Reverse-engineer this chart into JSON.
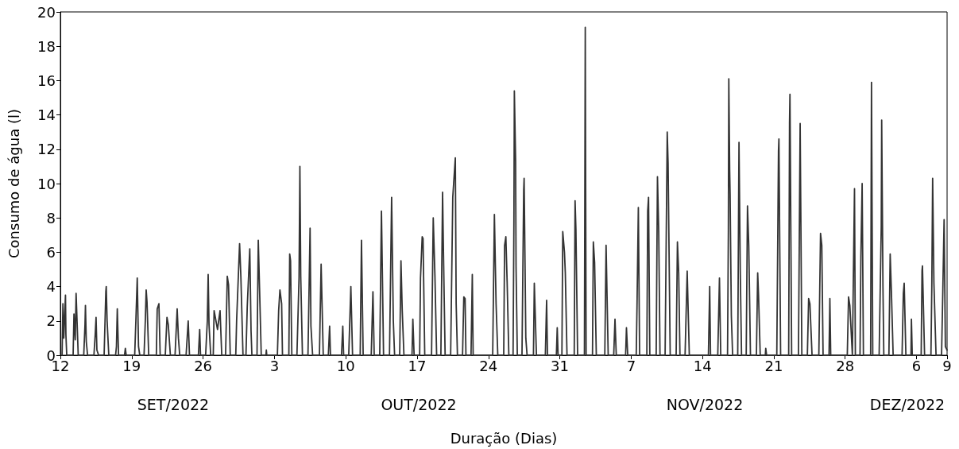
{
  "chart_data": {
    "type": "line",
    "xlabel": "Duração (Dias)",
    "ylabel": "Consumo de água (l)",
    "annotations": [
      "SET/2022",
      "OUT/2022",
      "NOV/2022",
      "DEZ/2022"
    ],
    "color": "#333333",
    "line_style": "solid",
    "xlim": [
      "2022-09-12",
      "2022-12-08"
    ],
    "xticks": [
      {
        "value": "2022-09-12",
        "label": "12"
      },
      {
        "value": "2022-09-19",
        "label": "19"
      },
      {
        "value": "2022-09-26",
        "label": "26"
      },
      {
        "value": "2022-10-03",
        "label": "3"
      },
      {
        "value": "2022-10-10",
        "label": "10"
      },
      {
        "value": "2022-10-17",
        "label": "17"
      },
      {
        "value": "2022-10-24",
        "label": "24"
      },
      {
        "value": "2022-10-31",
        "label": "31"
      },
      {
        "value": "2022-11-07",
        "label": "7"
      },
      {
        "value": "2022-11-14",
        "label": "14"
      },
      {
        "value": "2022-11-21",
        "label": "21"
      },
      {
        "value": "2022-11-28",
        "label": "28"
      },
      {
        "value": "2022-12-05",
        "label": "6"
      },
      {
        "value": "2022-12-08",
        "label": "9"
      }
    ],
    "ylim": [
      0,
      20
    ],
    "yticks": [
      0,
      2,
      4,
      6,
      8,
      10,
      12,
      14,
      16,
      18,
      20
    ],
    "x": [
      "2022-09-12T04:00",
      "2022-09-12T06:00",
      "2022-09-12T08:00",
      "2022-09-12T12:00",
      "2022-09-12T13:00",
      "2022-09-12T15:00",
      "2022-09-13T06:00",
      "2022-09-13T08:00",
      "2022-09-13T11:00",
      "2022-09-13T13:00",
      "2022-09-13T18:00",
      "2022-09-14T07:00",
      "2022-09-14T10:00",
      "2022-09-14T11:00",
      "2022-09-14T13:00",
      "2022-09-14T16:00",
      "2022-09-15T07:00",
      "2022-09-15T10:00",
      "2022-09-15T12:00",
      "2022-09-15T14:00",
      "2022-09-15T18:00",
      "2022-09-16T07:00",
      "2022-09-16T11:00",
      "2022-09-16T12:00",
      "2022-09-16T14:00",
      "2022-09-16T18:00",
      "2022-09-17T10:00",
      "2022-09-17T12:00",
      "2022-09-17T14:00",
      "2022-09-17T17:00",
      "2022-09-18T07:00",
      "2022-09-18T09:00",
      "2022-09-18T11:00",
      "2022-09-19T07:00",
      "2022-09-19T10:00",
      "2022-09-19T13:00",
      "2022-09-19T16:00",
      "2022-09-19T19:00",
      "2022-09-20T05:00",
      "2022-09-20T08:00",
      "2022-09-20T10:00",
      "2022-09-20T12:00",
      "2022-09-20T16:00",
      "2022-09-21T10:00",
      "2022-09-21T12:00",
      "2022-09-21T16:00",
      "2022-09-21T19:00",
      "2022-09-22T07:00",
      "2022-09-22T11:00",
      "2022-09-22T14:00",
      "2022-09-22T19:00",
      "2022-09-23T06:00",
      "2022-09-23T11:00",
      "2022-09-23T14:00",
      "2022-09-23T17:00",
      "2022-09-24T08:00",
      "2022-09-24T13:00",
      "2022-09-24T16:00",
      "2022-09-25T13:00",
      "2022-09-25T16:00",
      "2022-09-25T18:00",
      "2022-09-26T06:00",
      "2022-09-26T10:00",
      "2022-09-26T12:00",
      "2022-09-26T14:00",
      "2022-09-26T18:00",
      "2022-09-27T00:00",
      "2022-09-27T02:00",
      "2022-09-27T10:00",
      "2022-09-27T16:00",
      "2022-09-27T20:00",
      "2022-09-28T05:00",
      "2022-09-28T09:00",
      "2022-09-28T12:00",
      "2022-09-28T16:00",
      "2022-09-29T05:00",
      "2022-09-29T07:00",
      "2022-09-29T14:00",
      "2022-09-29T17:00",
      "2022-09-29T22:00",
      "2022-09-30T05:00",
      "2022-09-30T08:00",
      "2022-09-30T14:00",
      "2022-09-30T17:00",
      "2022-09-30T19:00",
      "2022-10-01T07:00",
      "2022-10-01T10:00",
      "2022-10-01T13:00",
      "2022-10-01T17:00",
      "2022-10-02T04:00",
      "2022-10-02T05:00",
      "2022-10-02T06:00",
      "2022-10-03T07:00",
      "2022-10-03T10:00",
      "2022-10-03T13:00",
      "2022-10-03T17:00",
      "2022-10-03T19:00",
      "2022-10-04T10:00",
      "2022-10-04T12:00",
      "2022-10-04T14:00",
      "2022-10-04T17:00",
      "2022-10-05T05:00",
      "2022-10-05T10:00",
      "2022-10-05T12:00",
      "2022-10-05T14:00",
      "2022-10-05T18:00",
      "2022-10-06T07:00",
      "2022-10-06T12:00",
      "2022-10-06T14:00",
      "2022-10-06T18:00",
      "2022-10-07T10:00",
      "2022-10-07T14:00",
      "2022-10-07T19:00",
      "2022-10-08T07:00",
      "2022-10-08T10:00",
      "2022-10-08T12:00",
      "2022-10-09T14:00",
      "2022-10-09T17:00",
      "2022-10-09T19:00",
      "2022-10-10T07:00",
      "2022-10-10T12:00",
      "2022-10-10T16:00",
      "2022-10-11T10:00",
      "2022-10-11T13:00",
      "2022-10-11T17:00",
      "2022-10-12T12:00",
      "2022-10-12T16:00",
      "2022-10-12T19:00",
      "2022-10-13T08:00",
      "2022-10-13T12:00",
      "2022-10-13T13:00",
      "2022-10-13T17:00",
      "2022-10-14T07:00",
      "2022-10-14T12:00",
      "2022-10-14T16:00",
      "2022-10-14T19:00",
      "2022-10-15T07:00",
      "2022-10-15T10:00",
      "2022-10-15T13:00",
      "2022-10-15T17:00",
      "2022-10-16T12:00",
      "2022-10-16T14:00",
      "2022-10-16T17:00",
      "2022-10-17T06:00",
      "2022-10-17T08:00",
      "2022-10-17T12:00",
      "2022-10-17T14:00",
      "2022-10-17T18:00",
      "2022-10-18T10:00",
      "2022-10-18T14:00",
      "2022-10-18T18:00",
      "2022-10-18T22:00",
      "2022-10-19T08:00",
      "2022-10-19T12:00",
      "2022-10-19T14:00",
      "2022-10-19T18:00",
      "2022-10-20T07:00",
      "2022-10-20T12:00",
      "2022-10-20T18:00",
      "2022-10-20T20:00",
      "2022-10-20T23:00",
      "2022-10-21T11:00",
      "2022-10-21T14:00",
      "2022-10-21T17:00",
      "2022-10-21T19:00",
      "2022-10-22T07:00",
      "2022-10-22T10:00",
      "2022-10-22T12:00",
      "2022-10-24T10:00",
      "2022-10-24T14:00",
      "2022-10-24T18:00",
      "2022-10-24T22:00",
      "2022-10-25T12:00",
      "2022-10-25T14:00",
      "2022-10-25T17:00",
      "2022-10-25T20:00",
      "2022-10-26T00:00",
      "2022-10-26T10:00",
      "2022-10-26T12:00",
      "2022-10-26T13:00",
      "2022-10-26T16:00",
      "2022-10-26T17:00",
      "2022-10-26T20:00",
      "2022-10-27T07:00",
      "2022-10-27T11:00",
      "2022-10-27T12:00",
      "2022-10-27T16:00",
      "2022-10-27T19:00",
      "2022-10-28T10:00",
      "2022-10-28T12:00",
      "2022-10-28T17:00",
      "2022-10-29T14:00",
      "2022-10-29T17:00",
      "2022-10-29T19:00",
      "2022-10-30T16:00",
      "2022-10-30T18:00",
      "2022-10-30T20:00",
      "2022-10-31T05:00",
      "2022-10-31T07:00",
      "2022-10-31T11:00",
      "2022-10-31T13:00",
      "2022-10-31T17:00",
      "2022-11-01T10:00",
      "2022-11-01T12:00",
      "2022-11-01T14:00",
      "2022-11-01T18:00",
      "2022-11-02T10:00",
      "2022-11-02T12:00",
      "2022-11-02T14:00",
      "2022-11-03T05:00",
      "2022-11-03T07:00",
      "2022-11-03T10:00",
      "2022-11-03T14:00",
      "2022-11-04T10:00",
      "2022-11-04T13:00",
      "2022-11-04T18:00",
      "2022-11-05T07:00",
      "2022-11-05T10:00",
      "2022-11-05T13:00",
      "2022-11-06T11:00",
      "2022-11-06T13:00",
      "2022-11-06T16:00",
      "2022-11-07T12:00",
      "2022-11-07T14:00",
      "2022-11-07T17:00",
      "2022-11-07T20:00",
      "2022-11-08T13:00",
      "2022-11-08T15:00",
      "2022-11-08T17:00",
      "2022-11-08T20:00",
      "2022-11-09T11:00",
      "2022-11-09T14:00",
      "2022-11-09T17:00",
      "2022-11-09T20:00",
      "2022-11-10T08:00",
      "2022-11-10T13:00",
      "2022-11-10T15:00",
      "2022-11-10T20:00",
      "2022-11-11T10:00",
      "2022-11-11T13:00",
      "2022-11-11T16:00",
      "2022-11-11T19:00",
      "2022-11-12T07:00",
      "2022-11-12T12:00",
      "2022-11-12T17:00",
      "2022-11-14T14:00",
      "2022-11-14T17:00",
      "2022-11-14T19:00",
      "2022-11-15T12:00",
      "2022-11-15T16:00",
      "2022-11-15T19:00",
      "2022-11-16T11:00",
      "2022-11-16T13:00",
      "2022-11-16T14:00",
      "2022-11-16T16:00",
      "2022-11-16T17:00",
      "2022-11-16T20:00",
      "2022-11-16T23:00",
      "2022-11-17T11:00",
      "2022-11-17T14:00",
      "2022-11-17T17:00",
      "2022-11-17T20:00",
      "2022-11-18T07:00",
      "2022-11-18T10:00",
      "2022-11-18T13:00",
      "2022-11-18T17:00",
      "2022-11-19T07:00",
      "2022-11-19T10:00",
      "2022-11-19T12:00",
      "2022-11-19T16:00",
      "2022-11-20T04:00",
      "2022-11-20T05:00",
      "2022-11-20T07:00",
      "2022-11-21T07:00",
      "2022-11-21T11:00",
      "2022-11-21T12:00",
      "2022-11-21T16:00",
      "2022-11-22T11:00",
      "2022-11-22T13:00",
      "2022-11-22T14:00",
      "2022-11-22T18:00",
      "2022-11-23T10:00",
      "2022-11-23T14:00",
      "2022-11-23T18:00",
      "2022-11-24T07:00",
      "2022-11-24T10:00",
      "2022-11-24T13:00",
      "2022-11-24T18:00",
      "2022-11-25T10:00",
      "2022-11-25T14:00",
      "2022-11-25T17:00",
      "2022-11-25T20:00",
      "2022-11-26T10:00",
      "2022-11-26T12:00",
      "2022-11-26T14:00",
      "2022-11-28T05:00",
      "2022-11-28T08:00",
      "2022-11-28T11:00",
      "2022-11-28T17:00",
      "2022-11-28T22:00",
      "2022-11-29T00:00",
      "2022-11-29T11:00",
      "2022-11-29T13:00",
      "2022-11-29T16:00",
      "2022-11-29T19:00",
      "2022-11-30T12:00",
      "2022-11-30T14:00",
      "2022-11-30T17:00",
      "2022-12-01T08:00",
      "2022-12-01T13:00",
      "2022-12-01T14:00",
      "2022-12-01T17:00",
      "2022-12-01T19:00",
      "2022-12-02T07:00",
      "2022-12-02T10:00",
      "2022-12-02T13:00",
      "2022-12-02T17:00",
      "2022-12-03T14:00",
      "2022-12-03T17:00",
      "2022-12-03T19:00",
      "2022-12-03T23:00",
      "2022-12-04T11:00",
      "2022-12-04T12:00",
      "2022-12-04T14:00",
      "2022-12-05T11:00",
      "2022-12-05T13:00",
      "2022-12-05T14:00",
      "2022-12-05T19:00",
      "2022-12-06T10:00",
      "2022-12-06T12:00",
      "2022-12-06T14:00",
      "2022-12-06T17:00",
      "2022-12-06T22:00",
      "2022-12-07T11:00",
      "2022-12-07T14:00",
      "2022-12-07T17:00",
      "2022-12-07T20:00",
      "2022-12-08T00:00"
    ],
    "values": [
      0,
      3.0,
      1.0,
      3.5,
      1.2,
      0,
      0,
      2.4,
      0.9,
      3.6,
      0,
      0,
      1.8,
      2.9,
      0.8,
      0,
      0,
      1.2,
      2.2,
      0.3,
      0,
      0,
      3.7,
      4.0,
      2.0,
      0,
      0,
      0.5,
      2.7,
      0,
      0,
      0.4,
      0,
      0,
      2.2,
      4.5,
      0.5,
      0,
      0,
      2.0,
      3.8,
      3.1,
      0,
      0,
      2.7,
      3.0,
      0,
      0,
      2.2,
      1.8,
      0,
      0,
      2.7,
      1.0,
      0,
      0,
      2.0,
      0,
      0,
      1.5,
      0,
      0,
      2.0,
      4.7,
      1.8,
      0,
      0,
      2.6,
      1.5,
      2.6,
      0,
      0,
      4.6,
      4.1,
      0,
      0,
      2.0,
      6.5,
      4.6,
      0,
      0,
      2.8,
      6.2,
      1.4,
      0,
      0,
      6.7,
      3.9,
      0,
      0,
      0.3,
      0,
      0,
      2.6,
      3.8,
      3.0,
      0,
      0,
      5.9,
      5.5,
      0,
      0,
      4.5,
      11.0,
      4.6,
      0,
      0,
      7.4,
      1.7,
      0,
      0,
      5.3,
      0,
      0,
      1.7,
      0,
      0,
      1.7,
      0,
      0,
      4.0,
      0,
      0,
      6.7,
      0,
      0,
      3.7,
      0,
      0,
      8.4,
      6.8,
      0,
      0,
      9.2,
      2.0,
      0,
      0,
      5.5,
      2.6,
      0,
      0,
      2.1,
      0,
      0,
      4.5,
      6.9,
      6.8,
      0,
      0,
      8.0,
      4.6,
      0,
      0,
      9.5,
      6.1,
      0,
      0,
      9.2,
      11.5,
      3.0,
      0,
      0,
      3.4,
      3.3,
      0,
      0,
      4.7,
      0,
      0,
      8.2,
      3.0,
      0,
      0,
      6.4,
      6.9,
      4.3,
      0,
      0,
      7.8,
      15.4,
      11.3,
      5.2,
      0,
      0,
      9.6,
      10.3,
      1.0,
      0,
      0,
      4.2,
      0,
      0,
      3.2,
      0,
      0,
      1.6,
      0,
      0,
      7.2,
      6.0,
      4.8,
      0,
      0,
      9.0,
      7.3,
      0,
      0,
      19.1,
      0,
      0,
      6.6,
      5.4,
      0,
      0,
      6.4,
      0,
      0,
      2.1,
      0,
      0,
      1.6,
      0,
      0,
      3.1,
      8.6,
      0,
      0,
      8.4,
      9.2,
      0,
      0,
      10.4,
      7.2,
      0,
      0,
      13.0,
      11.2,
      0,
      0,
      6.6,
      4.8,
      0,
      0,
      4.9,
      0,
      0,
      4.0,
      0,
      0,
      4.5,
      0,
      0,
      7.3,
      16.1,
      10.8,
      9.4,
      2.3,
      0,
      0,
      12.4,
      4.9,
      0,
      0,
      8.7,
      6.4,
      0,
      0,
      4.8,
      3.5,
      0,
      0,
      0.4,
      0,
      0,
      11.9,
      12.6,
      0,
      0,
      13.5,
      15.2,
      0,
      0,
      13.5,
      0,
      0,
      3.3,
      3.0,
      0,
      0,
      7.1,
      6.4,
      0,
      0,
      3.3,
      0,
      0,
      3.4,
      2.9,
      0,
      9.7,
      0,
      0,
      5.7,
      10.0,
      0,
      0,
      15.9,
      0,
      0,
      7.5,
      13.7,
      4.0,
      0,
      0,
      5.9,
      3.6,
      0,
      0,
      3.6,
      4.2,
      0,
      0,
      2.1,
      0,
      0,
      4.9,
      5.2,
      0,
      0,
      3.9,
      10.3,
      4.2,
      0,
      0,
      3.8,
      7.9,
      0.5,
      0.3
    ]
  }
}
